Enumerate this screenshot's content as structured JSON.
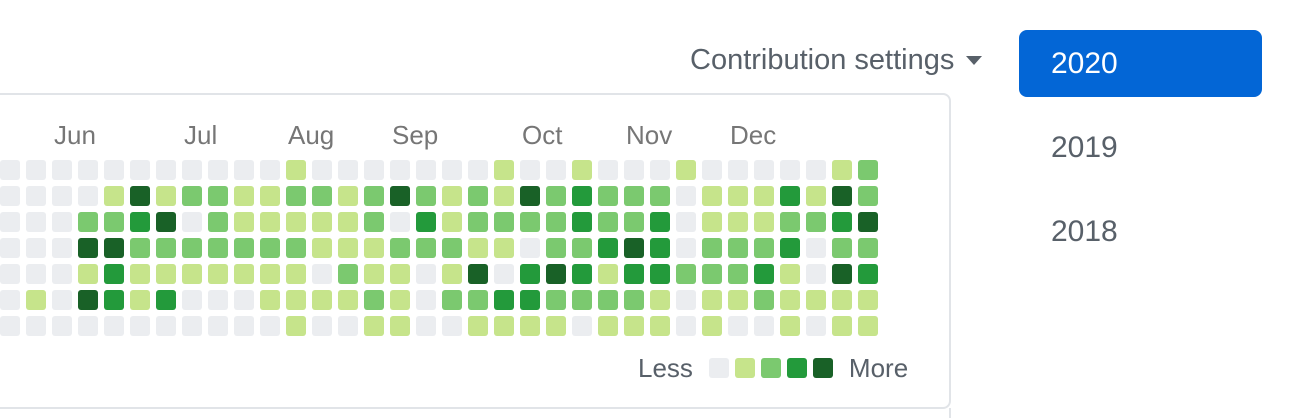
{
  "header": {
    "settings_label": "Contribution settings",
    "caret_icon": "caret-down"
  },
  "year_list": {
    "items": [
      {
        "label": "2020",
        "selected": true
      },
      {
        "label": "2019",
        "selected": false
      },
      {
        "label": "2018",
        "selected": false
      }
    ]
  },
  "colors": {
    "background": "#ffffff",
    "accent_blue": "#0366d6",
    "year_text": "#586069",
    "settings_text": "#586069",
    "month_text": "#767676",
    "legend_text": "#586069",
    "border": "#e1e4e8"
  },
  "calendar": {
    "type": "heatmap",
    "rows": 7,
    "weeks_visible": 34,
    "palette": [
      "#ebedf0",
      "#c6e48b",
      "#7bc96f",
      "#239a3b",
      "#196127"
    ],
    "months": [
      {
        "label": "Jun",
        "week": 3
      },
      {
        "label": "Jul",
        "week": 8
      },
      {
        "label": "Aug",
        "week": 12
      },
      {
        "label": "Sep",
        "week": 16
      },
      {
        "label": "Oct",
        "week": 21
      },
      {
        "label": "Nov",
        "week": 25
      },
      {
        "label": "Dec",
        "week": 29
      }
    ],
    "grid_rows": [
      [
        0,
        0,
        0,
        0,
        0,
        0,
        0,
        0,
        0,
        0,
        0,
        1,
        0,
        0,
        0,
        0,
        0,
        0,
        0,
        1,
        0,
        0,
        1,
        0,
        0,
        0,
        1,
        0,
        0,
        0,
        0,
        0,
        1,
        2
      ],
      [
        0,
        0,
        0,
        0,
        1,
        4,
        1,
        2,
        2,
        1,
        1,
        2,
        2,
        1,
        2,
        4,
        2,
        1,
        2,
        1,
        4,
        2,
        3,
        2,
        2,
        2,
        0,
        1,
        1,
        1,
        3,
        1,
        4,
        2
      ],
      [
        0,
        0,
        0,
        2,
        2,
        3,
        4,
        0,
        2,
        1,
        1,
        1,
        1,
        1,
        2,
        0,
        3,
        1,
        2,
        2,
        2,
        2,
        3,
        2,
        2,
        3,
        0,
        1,
        1,
        1,
        2,
        2,
        3,
        4
      ],
      [
        0,
        0,
        0,
        4,
        4,
        2,
        2,
        2,
        2,
        2,
        2,
        2,
        1,
        1,
        1,
        2,
        2,
        2,
        1,
        1,
        0,
        2,
        2,
        3,
        4,
        3,
        0,
        2,
        2,
        2,
        3,
        0,
        2,
        2
      ],
      [
        0,
        0,
        0,
        1,
        3,
        1,
        1,
        1,
        1,
        1,
        1,
        1,
        0,
        2,
        1,
        1,
        0,
        1,
        4,
        0,
        3,
        4,
        3,
        1,
        3,
        3,
        2,
        2,
        2,
        3,
        1,
        0,
        4,
        3
      ],
      [
        0,
        1,
        0,
        4,
        3,
        1,
        3,
        0,
        0,
        0,
        1,
        1,
        1,
        1,
        2,
        1,
        0,
        2,
        2,
        3,
        3,
        2,
        2,
        2,
        2,
        1,
        0,
        1,
        1,
        2,
        1,
        1,
        1,
        1
      ],
      [
        0,
        0,
        0,
        0,
        0,
        0,
        0,
        0,
        0,
        0,
        0,
        1,
        0,
        0,
        1,
        1,
        0,
        0,
        1,
        1,
        1,
        1,
        0,
        1,
        1,
        1,
        0,
        1,
        0,
        0,
        1,
        0,
        1,
        1
      ]
    ],
    "legend": {
      "less": "Less",
      "more": "More"
    }
  }
}
